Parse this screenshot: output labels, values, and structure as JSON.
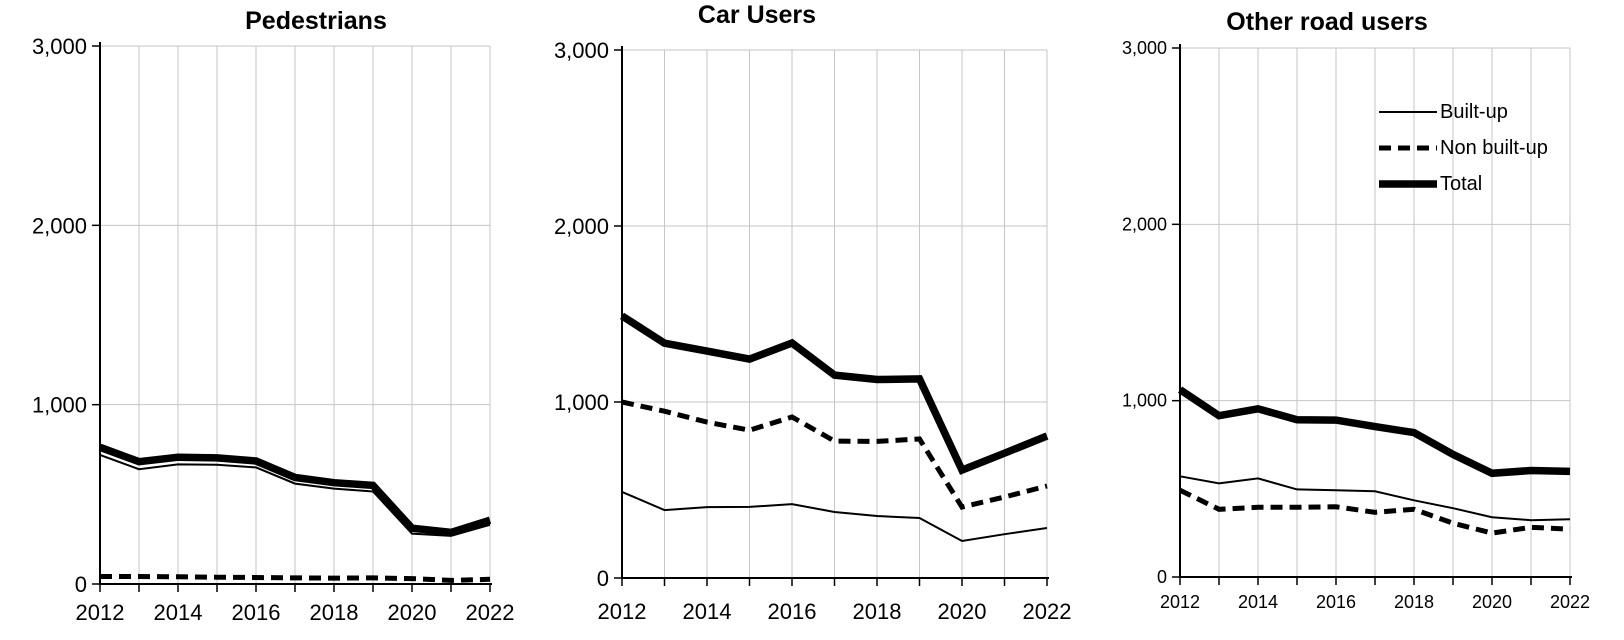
{
  "legend": {
    "items": [
      {
        "id": "built_up",
        "label": "Built-up",
        "style": "thin"
      },
      {
        "id": "non_built_up",
        "label": "Non built-up",
        "style": "dashed"
      },
      {
        "id": "total",
        "label": "Total",
        "style": "thick"
      }
    ]
  },
  "chart_data": [
    {
      "type": "line",
      "title": "Pedestrians",
      "xlabel": "",
      "ylabel": "",
      "ylim": [
        0,
        3000
      ],
      "grid": true,
      "x": [
        2012,
        2013,
        2014,
        2015,
        2016,
        2017,
        2018,
        2019,
        2020,
        2021,
        2022
      ],
      "x_tick_label_years": [
        2012,
        2014,
        2016,
        2018,
        2020,
        2022
      ],
      "x_tick_labels": [
        "2012",
        "2014",
        "2016",
        "2018",
        "2020",
        "2022"
      ],
      "y_ticks": [
        {
          "value": 0,
          "label": "0"
        },
        {
          "value": 1000,
          "label": "1,000"
        },
        {
          "value": 2000,
          "label": "2,000"
        },
        {
          "value": 3000,
          "label": "3,000"
        }
      ],
      "series": [
        {
          "name": "Built-up",
          "style": "thin",
          "values": [
            720,
            640,
            667,
            665,
            650,
            560,
            532,
            516,
            281,
            268,
            330
          ]
        },
        {
          "name": "Non built-up",
          "style": "dashed",
          "values": [
            42,
            42,
            40,
            38,
            36,
            34,
            33,
            34,
            30,
            20,
            26
          ]
        },
        {
          "name": "Total",
          "style": "thick",
          "values": [
            762,
            682,
            707,
            703,
            686,
            594,
            565,
            550,
            311,
            288,
            356
          ]
        }
      ]
    },
    {
      "type": "line",
      "title": "Car Users",
      "xlabel": "",
      "ylabel": "",
      "ylim": [
        0,
        3000
      ],
      "grid": true,
      "x": [
        2012,
        2013,
        2014,
        2015,
        2016,
        2017,
        2018,
        2019,
        2020,
        2021,
        2022
      ],
      "x_tick_label_years": [
        2012,
        2014,
        2016,
        2018,
        2020,
        2022
      ],
      "x_tick_labels": [
        "2012",
        "2014",
        "2016",
        "2018",
        "2020",
        "2022"
      ],
      "y_ticks": [
        {
          "value": 0,
          "label": "0"
        },
        {
          "value": 1000,
          "label": "1,000"
        },
        {
          "value": 2000,
          "label": "2,000"
        },
        {
          "value": 3000,
          "label": "3,000"
        }
      ],
      "series": [
        {
          "name": "Built-up",
          "style": "thin",
          "values": [
            489,
            386,
            403,
            404,
            420,
            375,
            352,
            341,
            210,
            249,
            284
          ]
        },
        {
          "name": "Non built-up",
          "style": "dashed",
          "values": [
            1000,
            948,
            886,
            840,
            915,
            778,
            776,
            790,
            403,
            460,
            523
          ]
        },
        {
          "name": "Total",
          "style": "thick",
          "values": [
            1489,
            1334,
            1289,
            1244,
            1335,
            1153,
            1128,
            1131,
            613,
            709,
            807
          ]
        }
      ]
    },
    {
      "type": "line",
      "title": "Other road users",
      "xlabel": "",
      "ylabel": "",
      "ylim": [
        0,
        3000
      ],
      "grid": true,
      "legend_position": "top-right",
      "x": [
        2012,
        2013,
        2014,
        2015,
        2016,
        2017,
        2018,
        2019,
        2020,
        2021,
        2022
      ],
      "x_tick_label_years": [
        2012,
        2014,
        2016,
        2018,
        2020,
        2022
      ],
      "x_tick_labels": [
        "2012",
        "2014",
        "2016",
        "2018",
        "2020",
        "2022"
      ],
      "y_ticks": [
        {
          "value": 0,
          "label": "0"
        },
        {
          "value": 1000,
          "label": "1,000"
        },
        {
          "value": 2000,
          "label": "2,000"
        },
        {
          "value": 3000,
          "label": "3,000"
        }
      ],
      "series": [
        {
          "name": "Built-up",
          "style": "thin",
          "values": [
            571,
            531,
            559,
            497,
            492,
            486,
            435,
            390,
            339,
            322,
            328
          ]
        },
        {
          "name": "Non built-up",
          "style": "dashed",
          "values": [
            492,
            384,
            395,
            395,
            398,
            367,
            384,
            305,
            249,
            282,
            271
          ]
        },
        {
          "name": "Total",
          "style": "thick",
          "values": [
            1063,
            915,
            954,
            892,
            890,
            853,
            819,
            695,
            588,
            604,
            599
          ]
        }
      ]
    }
  ]
}
